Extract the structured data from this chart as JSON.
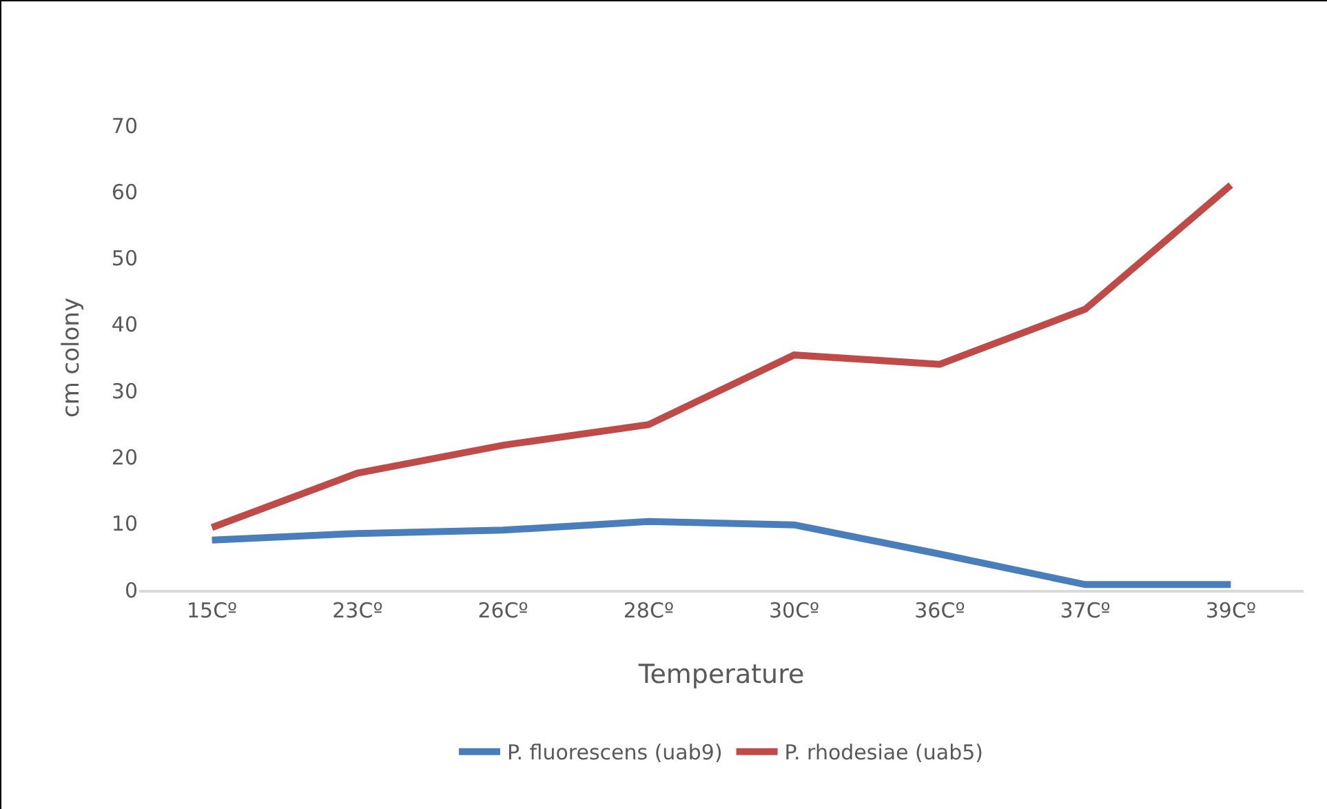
{
  "chart_data": {
    "type": "line",
    "xlabel": "Temperature",
    "ylabel": "cm colony",
    "categories": [
      "15Cº",
      "23Cº",
      "26Cº",
      "28Cº",
      "30Cº",
      "36Cº",
      "37Cº",
      "39Cº"
    ],
    "series": [
      {
        "name": "P. fluorescens (uab9)",
        "color": "#4a7ebb",
        "values": [
          7.5,
          8.5,
          9,
          10.3,
          9.8,
          5.4,
          0.8,
          0.8
        ]
      },
      {
        "name": "P. rhodesiae (uab5)",
        "color": "#be4b48",
        "values": [
          9.4,
          17.6,
          21.8,
          24.9,
          35.4,
          34,
          42.3,
          61
        ]
      }
    ],
    "ylim": [
      0,
      70
    ],
    "yticks": [
      0,
      10,
      20,
      30,
      40,
      50,
      60,
      70
    ],
    "grid": false,
    "legend": "bottom",
    "marker": "none",
    "line_style": "solid"
  }
}
